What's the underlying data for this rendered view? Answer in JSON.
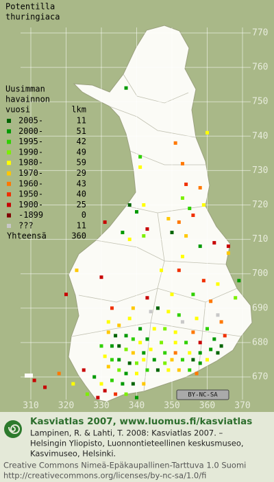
{
  "map": {
    "title": [
      "Potentilla",
      "thuringiaca"
    ],
    "legend_header": [
      "Uusimman",
      "havainnon",
      "vuosi"
    ],
    "count_header": "lkm",
    "legend": [
      {
        "label": "2005-",
        "count": 11,
        "color": "#006400"
      },
      {
        "label": "2000-",
        "count": 51,
        "color": "#009a00"
      },
      {
        "label": "1995-",
        "count": 42,
        "color": "#2fd000"
      },
      {
        "label": "1990-",
        "count": 49,
        "color": "#7cf000"
      },
      {
        "label": "1980-",
        "count": 59,
        "color": "#ffff00"
      },
      {
        "label": "1970-",
        "count": 29,
        "color": "#ffc800"
      },
      {
        "label": "1960-",
        "count": 43,
        "color": "#ff7800"
      },
      {
        "label": "1950-",
        "count": 40,
        "color": "#f03000"
      },
      {
        "label": "1900-",
        "count": 25,
        "color": "#c80000"
      },
      {
        "label": "-1899",
        "count": 0,
        "color": "#800000"
      },
      {
        "label": "???",
        "count": 11,
        "color": "#c8c8c8"
      }
    ],
    "total_label": "Yhteensä",
    "total": 360,
    "xlim": [
      310,
      370
    ],
    "xticks": [
      310,
      320,
      330,
      340,
      350,
      360,
      370
    ],
    "ylim": [
      670,
      770
    ],
    "yticks": [
      670,
      680,
      690,
      700,
      710,
      720,
      730,
      740,
      750,
      760,
      770
    ],
    "points": [
      [
        337,
        754,
        1
      ],
      [
        351,
        738,
        6
      ],
      [
        360,
        741,
        4
      ],
      [
        341,
        734,
        2
      ],
      [
        353,
        732,
        6
      ],
      [
        341,
        731,
        4
      ],
      [
        354,
        726,
        7
      ],
      [
        358,
        725,
        6
      ],
      [
        338,
        720,
        0
      ],
      [
        340,
        718,
        1
      ],
      [
        342,
        720,
        4
      ],
      [
        353,
        722,
        3
      ],
      [
        355,
        719,
        2
      ],
      [
        359,
        720,
        4
      ],
      [
        349,
        716,
        5
      ],
      [
        352,
        715,
        6
      ],
      [
        356,
        717,
        7
      ],
      [
        343,
        713,
        8
      ],
      [
        331,
        715,
        8
      ],
      [
        336,
        712,
        1
      ],
      [
        338,
        710,
        4
      ],
      [
        342,
        711,
        3
      ],
      [
        350,
        712,
        0
      ],
      [
        354,
        711,
        5
      ],
      [
        362,
        709,
        8
      ],
      [
        358,
        708,
        1
      ],
      [
        366,
        708,
        8
      ],
      [
        353,
        705,
        4
      ],
      [
        366,
        706,
        5
      ],
      [
        323,
        701,
        5
      ],
      [
        330,
        699,
        8
      ],
      [
        347,
        701,
        4
      ],
      [
        352,
        701,
        7
      ],
      [
        359,
        698,
        7
      ],
      [
        363,
        697,
        4
      ],
      [
        369,
        698,
        1
      ],
      [
        320,
        694,
        8
      ],
      [
        343,
        693,
        8
      ],
      [
        350,
        694,
        4
      ],
      [
        356,
        694,
        2
      ],
      [
        361,
        692,
        6
      ],
      [
        368,
        693,
        3
      ],
      [
        333,
        690,
        7
      ],
      [
        339,
        690,
        5
      ],
      [
        346,
        690,
        0
      ],
      [
        349,
        689,
        4
      ],
      [
        352,
        688,
        2
      ],
      [
        357,
        687,
        4
      ],
      [
        363,
        688,
        10
      ],
      [
        364,
        686,
        6
      ],
      [
        332,
        686,
        4
      ],
      [
        335,
        685,
        5
      ],
      [
        338,
        687,
        4
      ],
      [
        341,
        684,
        1
      ],
      [
        345,
        684,
        4
      ],
      [
        348,
        684,
        3
      ],
      [
        351,
        683,
        4
      ],
      [
        356,
        683,
        6
      ],
      [
        360,
        684,
        2
      ],
      [
        365,
        682,
        7
      ],
      [
        332,
        683,
        5
      ],
      [
        334,
        682,
        0
      ],
      [
        337,
        682,
        1
      ],
      [
        339,
        681,
        2
      ],
      [
        341,
        680,
        4
      ],
      [
        343,
        681,
        1
      ],
      [
        347,
        680,
        3
      ],
      [
        351,
        680,
        4
      ],
      [
        354,
        680,
        2
      ],
      [
        358,
        680,
        8
      ],
      [
        362,
        681,
        1
      ],
      [
        364,
        679,
        0
      ],
      [
        330,
        679,
        2
      ],
      [
        333,
        679,
        1
      ],
      [
        335,
        679,
        0
      ],
      [
        337,
        678,
        3
      ],
      [
        339,
        677,
        5
      ],
      [
        342,
        677,
        1
      ],
      [
        344,
        678,
        4
      ],
      [
        348,
        677,
        2
      ],
      [
        351,
        677,
        6
      ],
      [
        355,
        677,
        4
      ],
      [
        358,
        677,
        1
      ],
      [
        361,
        678,
        1
      ],
      [
        363,
        677,
        0
      ],
      [
        331,
        676,
        4
      ],
      [
        333,
        675,
        2
      ],
      [
        335,
        675,
        1
      ],
      [
        338,
        674,
        0
      ],
      [
        340,
        674,
        3
      ],
      [
        342,
        675,
        4
      ],
      [
        345,
        675,
        1
      ],
      [
        348,
        674,
        3
      ],
      [
        350,
        675,
        5
      ],
      [
        353,
        675,
        2
      ],
      [
        356,
        675,
        0
      ],
      [
        358,
        674,
        1
      ],
      [
        360,
        675,
        4
      ],
      [
        332,
        673,
        5
      ],
      [
        335,
        672,
        3
      ],
      [
        337,
        671,
        1
      ],
      [
        340,
        671,
        4
      ],
      [
        343,
        672,
        2
      ],
      [
        346,
        672,
        0
      ],
      [
        349,
        672,
        4
      ],
      [
        352,
        672,
        5
      ],
      [
        355,
        672,
        2
      ],
      [
        357,
        671,
        6
      ],
      [
        325,
        672,
        8
      ],
      [
        328,
        670,
        1
      ],
      [
        330,
        668,
        4
      ],
      [
        333,
        669,
        2
      ],
      [
        336,
        668,
        1
      ],
      [
        339,
        668,
        0
      ],
      [
        342,
        668,
        5
      ],
      [
        331,
        666,
        8
      ],
      [
        334,
        665,
        7
      ],
      [
        337,
        665,
        3
      ],
      [
        340,
        664,
        1
      ],
      [
        318,
        671,
        6
      ],
      [
        314,
        667,
        8
      ],
      [
        322,
        668,
        4
      ],
      [
        326,
        665,
        3
      ],
      [
        311,
        669,
        8
      ],
      [
        329,
        664,
        8
      ],
      [
        344,
        689,
        10
      ],
      [
        353,
        686,
        10
      ]
    ],
    "license_badge": "BY-NC-SA",
    "footer": {
      "heading": "Kasviatlas 2007, www.luomus.fi/kasviatlas",
      "citation": [
        "Lampinen, R. & Lahti, T. 2008: Kasviatlas 2007. –",
        "Helsingin Yliopisto, Luonnontieteellinen keskusmuseo,",
        "Kasvimuseo, Helsinki."
      ],
      "license": [
        "Creative Commons Nimeä-Epäkaupallinen-Tarttuva 1.0 Suomi",
        "http://creativecommons.org/licenses/by-nc-sa/1.0/fi"
      ]
    }
  }
}
